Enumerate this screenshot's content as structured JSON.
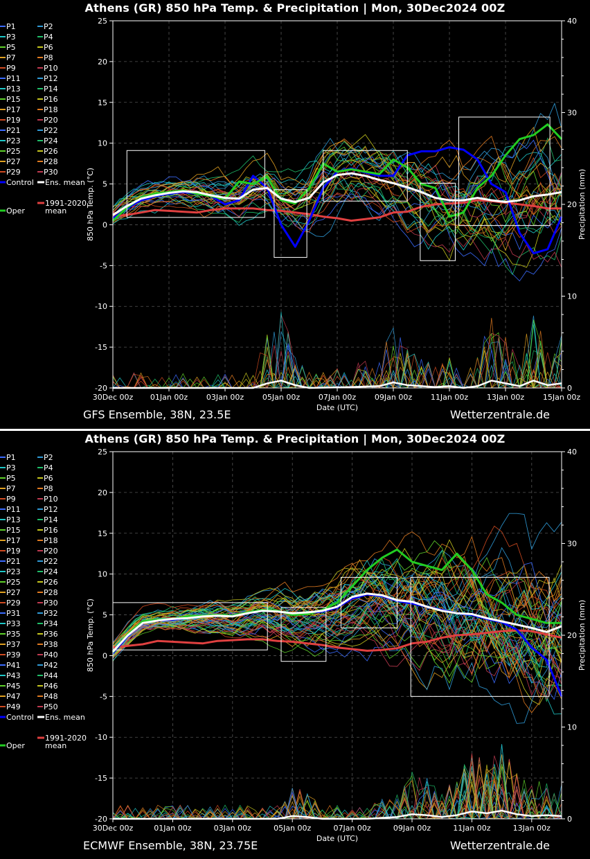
{
  "panels": [
    {
      "id": "gfs",
      "title": "Athens  (GR)  850 hPa Temp. & Precipitation | Mon, 30Dec2024 00Z",
      "footer_left": "GFS Ensemble, 38N, 23.5E",
      "footer_right": "Wetterzentrale.de",
      "legend": {
        "members": [
          "P1",
          "P2",
          "P3",
          "P4",
          "P5",
          "P6",
          "P7",
          "P8",
          "P9",
          "P10",
          "P11",
          "P12",
          "P13",
          "P14",
          "P15",
          "P16",
          "P17",
          "P18",
          "P19",
          "P20",
          "P21",
          "P22",
          "P23",
          "P24",
          "P25",
          "P26",
          "P27",
          "P28",
          "P29",
          "P30"
        ],
        "control": "Control",
        "ens_mean": "Ens. mean",
        "oper": "Oper",
        "climate_mean": "1991-2020\nmean"
      }
    },
    {
      "id": "ecmwf",
      "title": "Athens  (GR)  850 hPa Temp. & Precipitation | Mon, 30Dec2024 00Z",
      "footer_left": "ECMWF Ensemble, 38N, 23.75E",
      "footer_right": "Wetterzentrale.de",
      "legend": {
        "members": [
          "P1",
          "P2",
          "P3",
          "P4",
          "P5",
          "P6",
          "P7",
          "P8",
          "P9",
          "P10",
          "P11",
          "P12",
          "P13",
          "P14",
          "P15",
          "P16",
          "P17",
          "P18",
          "P19",
          "P20",
          "P21",
          "P22",
          "P23",
          "P24",
          "P25",
          "P26",
          "P27",
          "P28",
          "P29",
          "P30",
          "P31",
          "P32",
          "P33",
          "P34",
          "P35",
          "P36",
          "P37",
          "P38",
          "P39",
          "P40",
          "P41",
          "P42",
          "P43",
          "P44",
          "P45",
          "P46",
          "P47",
          "P48",
          "P49",
          "P50"
        ],
        "control": "Control",
        "ens_mean": "Ens. mean",
        "oper": "Oper",
        "climate_mean": "1991-2020\nmean"
      }
    }
  ],
  "palette": [
    "#3b6bff",
    "#2f9bd8",
    "#1ec7c7",
    "#1fbf6a",
    "#5fd12a",
    "#c8c81e",
    "#e0a020",
    "#e07a20",
    "#d04a20",
    "#c03a50"
  ],
  "colors": {
    "control": "#0000ff",
    "ens_mean": "#ffffff",
    "oper": "#22cc22",
    "climate": "#e04040",
    "box": "#ffffff"
  },
  "chart_data": [
    {
      "type": "line",
      "ylabel": "850 hPa Temp. (°C)",
      "y2label": "Precipitation (mm)",
      "xlabel": "Date (UTC)",
      "ylim": [
        -20,
        25
      ],
      "y2lim": [
        0,
        40
      ],
      "yticks": [
        -20,
        -15,
        -10,
        -5,
        0,
        5,
        10,
        15,
        20,
        25
      ],
      "y2ticks": [
        0,
        10,
        20,
        30,
        40
      ],
      "xlim": [
        0,
        384
      ],
      "xticks": [
        {
          "h": 0,
          "label": "30Dec 00z"
        },
        {
          "h": 48,
          "label": "01Jan 00z"
        },
        {
          "h": 96,
          "label": "03Jan 00z"
        },
        {
          "h": 144,
          "label": "05Jan 00z"
        },
        {
          "h": 192,
          "label": "07Jan 00z"
        },
        {
          "h": 240,
          "label": "09Jan 00z"
        },
        {
          "h": 288,
          "label": "11Jan 00z"
        },
        {
          "h": 336,
          "label": "13Jan 00z"
        },
        {
          "h": 384,
          "label": "15Jan 00z"
        }
      ],
      "grid": true,
      "members_count": 30,
      "spread_seed": 7,
      "spread": [
        1.2,
        1.2,
        1.5,
        2.0,
        2.2,
        2.5,
        3.5,
        3.0,
        3.5,
        4.0,
        4.5,
        5.0,
        5.5,
        6.0
      ],
      "ens_mean": {
        "h": [
          0,
          12,
          24,
          36,
          48,
          60,
          72,
          84,
          96,
          108,
          120,
          132,
          144,
          156,
          168,
          180,
          192,
          204,
          216,
          228,
          240,
          252,
          264,
          276,
          288,
          300,
          312,
          324,
          336,
          348,
          360,
          372,
          384
        ],
        "v": [
          1.2,
          2.3,
          3.2,
          3.6,
          3.9,
          4.1,
          4.0,
          3.6,
          3.3,
          3.2,
          4.3,
          4.5,
          3.2,
          2.8,
          3.3,
          5.2,
          6.1,
          6.3,
          6.0,
          5.5,
          5.1,
          4.6,
          4.0,
          3.3,
          3.0,
          3.0,
          3.3,
          3.0,
          2.8,
          3.0,
          3.5,
          3.7,
          4.0
        ]
      },
      "control": {
        "h": [
          0,
          12,
          24,
          36,
          48,
          60,
          72,
          84,
          96,
          108,
          120,
          132,
          144,
          156,
          168,
          180,
          192,
          204,
          216,
          228,
          240,
          252,
          264,
          276,
          288,
          300,
          312,
          324,
          336,
          348,
          360,
          372,
          384
        ],
        "v": [
          0.8,
          2.0,
          3.0,
          3.5,
          3.8,
          4.0,
          3.8,
          3.5,
          2.5,
          3.0,
          6.0,
          4.5,
          0.0,
          -2.7,
          0.5,
          4.5,
          6.5,
          6.9,
          6.4,
          6.0,
          6.0,
          8.5,
          9.0,
          9.0,
          9.5,
          9.2,
          8.0,
          5.0,
          4.0,
          -1.0,
          -3.5,
          -3.0,
          1.0
        ]
      },
      "oper": {
        "h": [
          0,
          12,
          24,
          36,
          48,
          60,
          72,
          84,
          96,
          108,
          120,
          132,
          144,
          156,
          168,
          180,
          192,
          204,
          216,
          228,
          240,
          252,
          264,
          276,
          288,
          300,
          312,
          324,
          336,
          348,
          360,
          372,
          384
        ],
        "v": [
          0.5,
          2.1,
          3.3,
          3.8,
          4.0,
          4.2,
          3.8,
          3.5,
          3.2,
          5.3,
          5.0,
          5.9,
          3.0,
          2.6,
          4.5,
          7.5,
          6.5,
          6.8,
          6.5,
          6.2,
          8.0,
          7.0,
          5.0,
          4.5,
          1.0,
          1.5,
          4.5,
          6.0,
          8.5,
          10.5,
          11.0,
          12.3,
          10.5
        ]
      },
      "climate": {
        "h": [
          0,
          12,
          24,
          36,
          48,
          60,
          72,
          84,
          96,
          108,
          120,
          132,
          144,
          156,
          168,
          180,
          192,
          204,
          216,
          228,
          240,
          252,
          264,
          276,
          288,
          300,
          312,
          324,
          336,
          348,
          360,
          372,
          384
        ],
        "v": [
          1.0,
          1.2,
          1.5,
          1.8,
          1.7,
          1.6,
          1.5,
          1.8,
          2.0,
          2.0,
          2.0,
          1.8,
          1.7,
          1.5,
          1.3,
          1.0,
          0.8,
          0.5,
          0.7,
          0.9,
          1.5,
          1.6,
          2.2,
          2.5,
          2.6,
          2.7,
          3.0,
          2.9,
          2.7,
          2.5,
          2.3,
          2.0,
          2.0
        ]
      },
      "precip_mean_mm": {
        "h": [
          0,
          120,
          132,
          144,
          156,
          168,
          204,
          228,
          240,
          252,
          264,
          276,
          288,
          300,
          312,
          324,
          336,
          348,
          360,
          372,
          384
        ],
        "v": [
          0,
          0,
          0.5,
          0.8,
          0.3,
          0,
          0.1,
          0.2,
          0.6,
          0.3,
          0.2,
          0.1,
          0.2,
          0.0,
          0.2,
          0.8,
          0.5,
          0.2,
          0.8,
          0.3,
          0.5
        ]
      },
      "precip_peak_mm": 8.5,
      "boxes": [
        {
          "h0": 12,
          "h1": 130,
          "t0": 0.9,
          "t1": 9.1
        },
        {
          "h0": 138,
          "h1": 166,
          "t0": -4.0,
          "t1": 4.3
        },
        {
          "h0": 180,
          "h1": 252,
          "t0": 2.9,
          "t1": 9.1
        },
        {
          "h0": 263,
          "h1": 293,
          "t0": -4.4,
          "t1": 5.1
        },
        {
          "h0": 296,
          "h1": 374,
          "t0": -0.1,
          "t1": 13.2
        }
      ]
    },
    {
      "type": "line",
      "ylabel": "850 hPa Temp. (°C)",
      "y2label": "Precipitation (mm)",
      "xlabel": "Date (UTC)",
      "ylim": [
        -20,
        25
      ],
      "y2lim": [
        0,
        40
      ],
      "yticks": [
        -20,
        -15,
        -10,
        -5,
        0,
        5,
        10,
        15,
        20,
        25
      ],
      "y2ticks": [
        0,
        10,
        20,
        30,
        40
      ],
      "xlim": [
        0,
        360
      ],
      "xticks": [
        {
          "h": 0,
          "label": "30Dec 00z"
        },
        {
          "h": 48,
          "label": "01Jan 00z"
        },
        {
          "h": 96,
          "label": "03Jan 00z"
        },
        {
          "h": 144,
          "label": "05Jan 00z"
        },
        {
          "h": 192,
          "label": "07Jan 00z"
        },
        {
          "h": 240,
          "label": "09Jan 00z"
        },
        {
          "h": 288,
          "label": "11Jan 00z"
        },
        {
          "h": 336,
          "label": "13Jan 00z"
        }
      ],
      "grid": true,
      "members_count": 50,
      "spread_seed": 19,
      "spread": [
        1.0,
        1.0,
        1.2,
        1.5,
        2.0,
        2.5,
        3.0,
        4.0,
        5.0,
        6.0,
        6.5,
        7.0,
        7.0
      ],
      "ens_mean": {
        "h": [
          0,
          12,
          24,
          36,
          48,
          60,
          72,
          84,
          96,
          108,
          120,
          132,
          144,
          156,
          168,
          180,
          192,
          204,
          216,
          228,
          240,
          252,
          264,
          276,
          288,
          300,
          312,
          324,
          336,
          348,
          360
        ],
        "v": [
          0.5,
          2.5,
          4.0,
          4.3,
          4.5,
          4.6,
          4.8,
          4.9,
          4.8,
          5.2,
          5.5,
          5.4,
          5.2,
          5.3,
          5.5,
          6.0,
          7.2,
          7.6,
          7.4,
          6.8,
          6.6,
          6.0,
          5.5,
          5.2,
          5.1,
          4.6,
          4.2,
          3.8,
          3.4,
          2.9,
          3.6
        ]
      },
      "control": {
        "h": [
          0,
          12,
          24,
          36,
          48,
          60,
          72,
          84,
          96,
          108,
          120,
          132,
          144,
          156,
          168,
          180,
          192,
          204,
          216,
          228,
          240,
          252,
          264,
          276,
          288,
          300,
          312,
          324,
          336,
          348,
          360
        ],
        "v": [
          0.3,
          2.4,
          4.1,
          4.3,
          4.4,
          4.7,
          4.8,
          5.0,
          4.9,
          5.2,
          5.5,
          5.4,
          5.1,
          5.2,
          5.4,
          5.9,
          7.0,
          7.5,
          7.3,
          6.7,
          6.4,
          6.0,
          5.6,
          5.2,
          5.0,
          4.5,
          4.1,
          3.2,
          1.0,
          -0.5,
          -5.0
        ]
      },
      "oper": {
        "h": [
          0,
          12,
          24,
          36,
          48,
          60,
          72,
          84,
          96,
          108,
          120,
          132,
          144,
          156,
          168,
          180,
          192,
          204,
          216,
          228,
          240,
          252,
          264,
          276,
          288,
          300,
          312,
          324,
          336,
          348,
          360
        ],
        "v": [
          0.4,
          2.6,
          4.2,
          4.4,
          4.5,
          4.8,
          4.9,
          5.0,
          4.9,
          5.3,
          5.6,
          5.5,
          5.0,
          5.1,
          5.6,
          6.5,
          8.5,
          10.5,
          12.0,
          13.0,
          11.5,
          11.0,
          10.5,
          12.5,
          10.5,
          7.5,
          6.5,
          5.0,
          4.5,
          4.0,
          4.0
        ]
      },
      "climate": {
        "h": [
          0,
          12,
          24,
          36,
          48,
          60,
          72,
          84,
          96,
          108,
          120,
          132,
          144,
          156,
          168,
          180,
          192,
          204,
          216,
          228,
          240,
          252,
          264,
          276,
          288,
          300,
          312,
          324,
          336,
          348,
          360
        ],
        "v": [
          1.0,
          1.2,
          1.4,
          1.8,
          1.7,
          1.6,
          1.5,
          1.8,
          1.9,
          2.0,
          2.0,
          1.8,
          1.7,
          1.5,
          1.3,
          1.0,
          0.8,
          0.6,
          0.7,
          0.9,
          1.5,
          1.7,
          2.2,
          2.5,
          2.6,
          2.8,
          3.0,
          3.1,
          3.0,
          2.6,
          2.2
        ]
      },
      "precip_mean_mm": {
        "h": [
          0,
          132,
          144,
          156,
          168,
          204,
          228,
          240,
          252,
          264,
          276,
          288,
          300,
          312,
          324,
          336,
          348,
          360
        ],
        "v": [
          0,
          0,
          0.3,
          0.2,
          0,
          0,
          0.2,
          0.5,
          0.4,
          0.2,
          0.4,
          0.8,
          0.6,
          0.9,
          0.5,
          0.3,
          0.4,
          0.3
        ]
      },
      "precip_peak_mm": 7.5,
      "boxes": [
        {
          "h0": 0,
          "h1": 124,
          "t0": 0.7,
          "t1": 6.5
        },
        {
          "h0": 135,
          "h1": 171,
          "t0": -0.7,
          "t1": 5.9
        },
        {
          "h0": 183,
          "h1": 228,
          "t0": 3.4,
          "t1": 9.6
        },
        {
          "h0": 239,
          "h1": 350,
          "t0": -5.0,
          "t1": 9.6
        }
      ]
    }
  ]
}
